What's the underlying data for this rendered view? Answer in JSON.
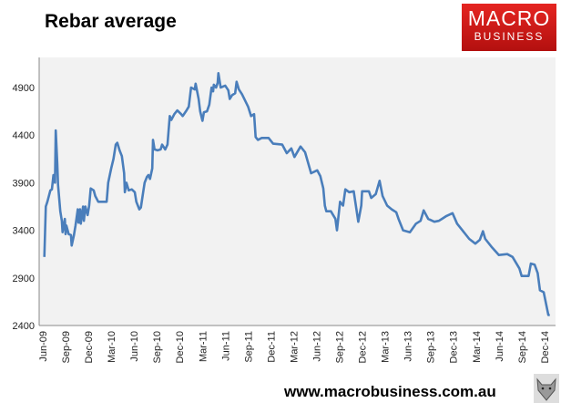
{
  "header": {
    "title": "Rebar average"
  },
  "logo": {
    "line1": "MACRO",
    "line2": "BUSINESS"
  },
  "footer": {
    "url": "www.macrobusiness.com.au",
    "icon": "wolf-icon"
  },
  "colors": {
    "line": "#4a7ebb",
    "plot_bg": "#f2f2f2",
    "logo_red": "#d81e1c"
  },
  "chart_data": {
    "type": "line",
    "title": "Rebar average",
    "xlabel": "",
    "ylabel": "",
    "x_units": "months since Jun-09",
    "ylim": [
      2400,
      5150
    ],
    "yticks": [
      2400,
      2900,
      3400,
      3900,
      4400,
      4900
    ],
    "xtick_labels": [
      "Jun-09",
      "Sep-09",
      "Dec-09",
      "Mar-10",
      "Jun-10",
      "Sep-10",
      "Dec-10",
      "Mar-11",
      "Jun-11",
      "Sep-11",
      "Dec-11",
      "Mar-12",
      "Jun-12",
      "Sep-12",
      "Dec-12",
      "Mar-13",
      "Jun-13",
      "Sep-13",
      "Dec-13",
      "Mar-14",
      "Jun-14",
      "Sep-14",
      "Dec-14"
    ],
    "grid": false,
    "legend": "none",
    "series": [
      {
        "name": "Rebar average",
        "points": [
          [
            0.2,
            3120
          ],
          [
            0.4,
            3650
          ],
          [
            0.6,
            3700
          ],
          [
            1.0,
            3820
          ],
          [
            1.2,
            3830
          ],
          [
            1.4,
            3980
          ],
          [
            1.6,
            3900
          ],
          [
            1.7,
            4450
          ],
          [
            1.9,
            4100
          ],
          [
            2.0,
            3880
          ],
          [
            2.3,
            3600
          ],
          [
            2.5,
            3500
          ],
          [
            2.6,
            3380
          ],
          [
            2.9,
            3520
          ],
          [
            3.0,
            3360
          ],
          [
            3.1,
            3450
          ],
          [
            3.4,
            3360
          ],
          [
            3.7,
            3350
          ],
          [
            3.8,
            3240
          ],
          [
            4.1,
            3350
          ],
          [
            4.3,
            3450
          ],
          [
            4.6,
            3620
          ],
          [
            4.7,
            3480
          ],
          [
            4.9,
            3620
          ],
          [
            5.0,
            3470
          ],
          [
            5.3,
            3650
          ],
          [
            5.4,
            3500
          ],
          [
            5.6,
            3650
          ],
          [
            5.9,
            3560
          ],
          [
            6.1,
            3660
          ],
          [
            6.3,
            3840
          ],
          [
            6.7,
            3820
          ],
          [
            6.9,
            3760
          ],
          [
            7.3,
            3700
          ],
          [
            8.4,
            3700
          ],
          [
            8.6,
            3900
          ],
          [
            9.0,
            4050
          ],
          [
            9.3,
            4150
          ],
          [
            9.6,
            4300
          ],
          [
            9.8,
            4320
          ],
          [
            10.1,
            4240
          ],
          [
            10.4,
            4180
          ],
          [
            10.7,
            4000
          ],
          [
            10.8,
            3800
          ],
          [
            11.0,
            3900
          ],
          [
            11.3,
            3820
          ],
          [
            11.7,
            3830
          ],
          [
            12.1,
            3800
          ],
          [
            12.3,
            3700
          ],
          [
            12.7,
            3620
          ],
          [
            12.9,
            3640
          ],
          [
            13.2,
            3800
          ],
          [
            13.4,
            3900
          ],
          [
            13.7,
            3960
          ],
          [
            13.9,
            3980
          ],
          [
            14.1,
            3940
          ],
          [
            14.4,
            4050
          ],
          [
            14.5,
            4350
          ],
          [
            14.7,
            4250
          ],
          [
            15.1,
            4240
          ],
          [
            15.5,
            4250
          ],
          [
            15.7,
            4300
          ],
          [
            16.1,
            4250
          ],
          [
            16.4,
            4300
          ],
          [
            16.7,
            4600
          ],
          [
            16.9,
            4560
          ],
          [
            17.3,
            4620
          ],
          [
            17.7,
            4660
          ],
          [
            18.2,
            4620
          ],
          [
            18.4,
            4600
          ],
          [
            18.9,
            4660
          ],
          [
            19.2,
            4700
          ],
          [
            19.5,
            4900
          ],
          [
            20.0,
            4880
          ],
          [
            20.1,
            4940
          ],
          [
            20.5,
            4780
          ],
          [
            20.7,
            4650
          ],
          [
            21.0,
            4550
          ],
          [
            21.2,
            4640
          ],
          [
            21.6,
            4650
          ],
          [
            21.9,
            4720
          ],
          [
            22.2,
            4900
          ],
          [
            22.4,
            4860
          ],
          [
            22.5,
            4930
          ],
          [
            22.8,
            4900
          ],
          [
            23.0,
            4950
          ],
          [
            23.1,
            5050
          ],
          [
            23.4,
            4900
          ],
          [
            24.0,
            4920
          ],
          [
            24.4,
            4870
          ],
          [
            24.6,
            4780
          ],
          [
            24.9,
            4820
          ],
          [
            25.3,
            4840
          ],
          [
            25.5,
            4960
          ],
          [
            25.8,
            4880
          ],
          [
            26.2,
            4830
          ],
          [
            27.0,
            4700
          ],
          [
            27.4,
            4600
          ],
          [
            27.8,
            4620
          ],
          [
            28.0,
            4380
          ],
          [
            28.3,
            4350
          ],
          [
            28.8,
            4370
          ],
          [
            29.7,
            4370
          ],
          [
            30.3,
            4310
          ],
          [
            31.5,
            4300
          ],
          [
            32.1,
            4210
          ],
          [
            32.7,
            4260
          ],
          [
            33.1,
            4170
          ],
          [
            33.9,
            4280
          ],
          [
            34.5,
            4220
          ],
          [
            34.9,
            4110
          ],
          [
            35.3,
            4000
          ],
          [
            36.1,
            4030
          ],
          [
            36.5,
            3970
          ],
          [
            36.9,
            3840
          ],
          [
            37.1,
            3660
          ],
          [
            37.3,
            3600
          ],
          [
            37.9,
            3600
          ],
          [
            38.5,
            3520
          ],
          [
            38.7,
            3400
          ],
          [
            39.1,
            3700
          ],
          [
            39.5,
            3660
          ],
          [
            39.8,
            3830
          ],
          [
            40.3,
            3800
          ],
          [
            40.9,
            3810
          ],
          [
            41.5,
            3490
          ],
          [
            41.9,
            3660
          ],
          [
            42.0,
            3810
          ],
          [
            42.9,
            3810
          ],
          [
            43.2,
            3740
          ],
          [
            43.8,
            3780
          ],
          [
            44.3,
            3920
          ],
          [
            44.7,
            3760
          ],
          [
            45.3,
            3660
          ],
          [
            45.9,
            3620
          ],
          [
            46.5,
            3590
          ],
          [
            46.8,
            3520
          ],
          [
            47.4,
            3400
          ],
          [
            48.3,
            3380
          ],
          [
            49.1,
            3470
          ],
          [
            49.7,
            3500
          ],
          [
            50.1,
            3610
          ],
          [
            50.7,
            3520
          ],
          [
            51.5,
            3490
          ],
          [
            52.1,
            3500
          ],
          [
            52.5,
            3520
          ],
          [
            53.1,
            3550
          ],
          [
            53.9,
            3580
          ],
          [
            54.5,
            3470
          ],
          [
            55.2,
            3400
          ],
          [
            56.1,
            3310
          ],
          [
            56.9,
            3260
          ],
          [
            57.5,
            3300
          ],
          [
            57.9,
            3390
          ],
          [
            58.2,
            3310
          ],
          [
            59.1,
            3220
          ],
          [
            60.0,
            3140
          ],
          [
            61.1,
            3150
          ],
          [
            61.8,
            3120
          ],
          [
            62.7,
            3000
          ],
          [
            63.0,
            2920
          ],
          [
            63.9,
            2920
          ],
          [
            64.2,
            3050
          ],
          [
            64.7,
            3040
          ],
          [
            65.1,
            2950
          ],
          [
            65.4,
            2770
          ],
          [
            65.9,
            2750
          ],
          [
            66.5,
            2510
          ],
          [
            66.7,
            2510
          ]
        ]
      }
    ]
  }
}
